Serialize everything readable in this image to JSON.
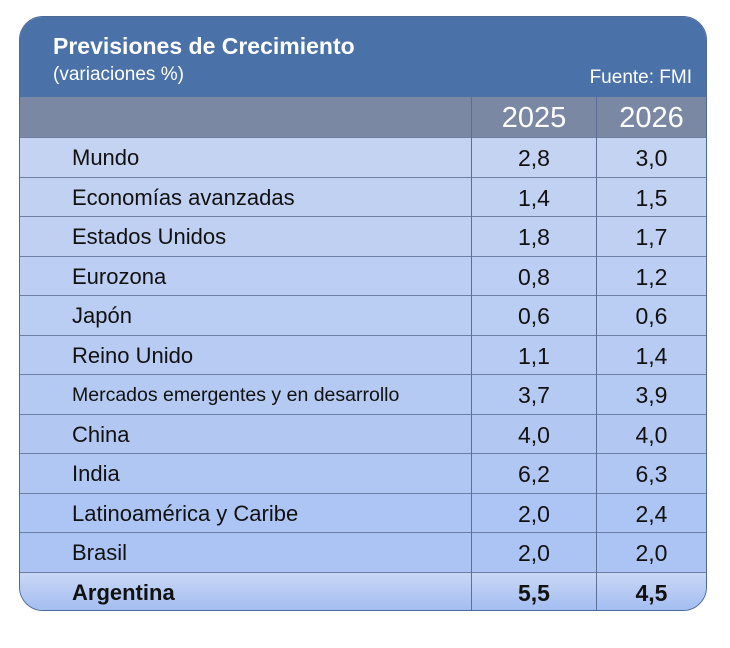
{
  "header": {
    "title": "Previsiones de Crecimiento",
    "subtitle": "(variaciones %)",
    "source": "Fuente: FMI"
  },
  "colors": {
    "header": "#4a72a8",
    "column_header": "#7b88a3",
    "row_top": "#c4d3f2",
    "row_bottom": "#a8c2f4"
  },
  "chart_data": {
    "type": "table",
    "columns": [
      "2025",
      "2026"
    ],
    "rows": [
      {
        "label": "Mundo",
        "values": [
          "2,8",
          "3,0"
        ]
      },
      {
        "label": "Economías avanzadas",
        "values": [
          "1,4",
          "1,5"
        ]
      },
      {
        "label": "Estados Unidos",
        "values": [
          "1,8",
          "1,7"
        ]
      },
      {
        "label": "Eurozona",
        "values": [
          "0,8",
          "1,2"
        ]
      },
      {
        "label": "Japón",
        "values": [
          "0,6",
          "0,6"
        ]
      },
      {
        "label": "Reino Unido",
        "values": [
          "1,1",
          "1,4"
        ]
      },
      {
        "label": "Mercados emergentes y en desarrollo",
        "values": [
          "3,7",
          "3,9"
        ]
      },
      {
        "label": "China",
        "values": [
          "4,0",
          "4,0"
        ]
      },
      {
        "label": "India",
        "values": [
          "6,2",
          "6,3"
        ]
      },
      {
        "label": "Latinoamérica y Caribe",
        "values": [
          "2,0",
          "2,4"
        ]
      },
      {
        "label": "Brasil",
        "values": [
          "2,0",
          "2,0"
        ]
      },
      {
        "label": "Argentina",
        "values": [
          "5,5",
          "4,5"
        ],
        "highlight": true
      }
    ]
  }
}
